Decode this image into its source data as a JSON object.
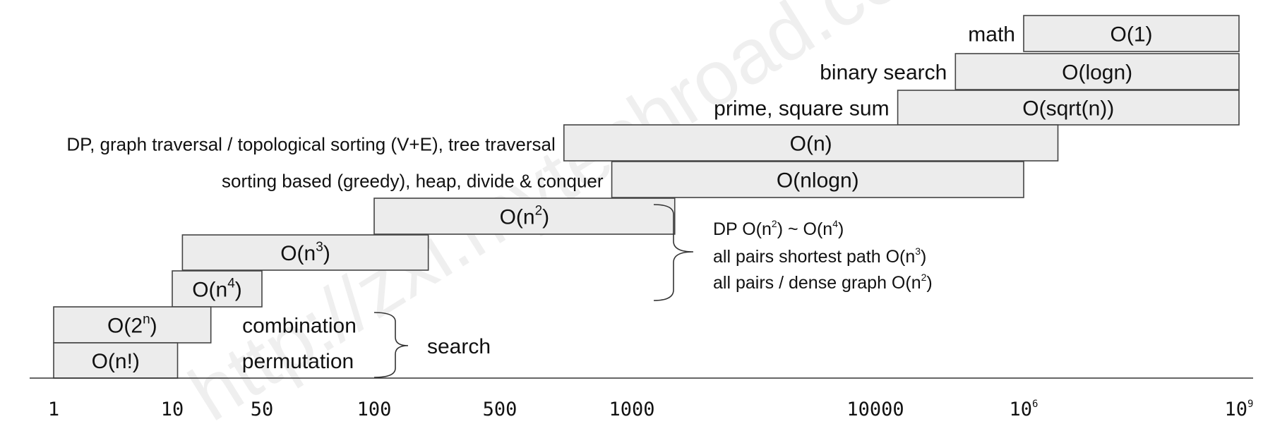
{
  "chart_data": {
    "type": "bar",
    "orientation": "horizontal-range",
    "x_axis": {
      "scale": "log",
      "tick_labels": [
        {
          "value": 1,
          "base": "1",
          "exp": ""
        },
        {
          "value": 10,
          "base": "10",
          "exp": ""
        },
        {
          "value": 50,
          "base": "50",
          "exp": ""
        },
        {
          "value": 100,
          "base": "100",
          "exp": ""
        },
        {
          "value": 500,
          "base": "500",
          "exp": ""
        },
        {
          "value": 1000,
          "base": "1000",
          "exp": ""
        },
        {
          "value": 10000,
          "base": "10000",
          "exp": ""
        },
        {
          "value": 1000000,
          "base": "10",
          "exp": "6"
        },
        {
          "value": 1000000000,
          "base": "10",
          "exp": "9"
        }
      ]
    },
    "series": [
      {
        "id": "o1",
        "label_base": "O(1)",
        "label_sup": "",
        "label_tail": "",
        "algorithm": "math",
        "range": [
          1000000,
          1000000000
        ]
      },
      {
        "id": "ologn",
        "label_base": "O(logn)",
        "label_sup": "",
        "label_tail": "",
        "algorithm": "binary search",
        "range": [
          120000,
          1000000000
        ]
      },
      {
        "id": "osqrt",
        "label_base": "O(sqrt(n))",
        "label_sup": "",
        "label_tail": "",
        "algorithm": "prime, square sum",
        "range": [
          20000,
          1000000000
        ]
      },
      {
        "id": "on",
        "label_base": "O(n)",
        "label_sup": "",
        "label_tail": "",
        "algorithm": "DP, graph traversal / topological sorting (V+E), tree traversal",
        "range": [
          700,
          3000000
        ]
      },
      {
        "id": "onlogn",
        "label_base": "O(nlogn)",
        "label_sup": "",
        "label_tail": "",
        "algorithm": "sorting based (greedy), heap, divide & conquer",
        "range": [
          900,
          1000000
        ]
      },
      {
        "id": "on2",
        "label_base": "O(n",
        "label_sup": "2",
        "label_tail": ")",
        "algorithm": "",
        "range": [
          100,
          1500
        ]
      },
      {
        "id": "on3",
        "label_base": "O(n",
        "label_sup": "3",
        "label_tail": ")",
        "algorithm": "",
        "range": [
          12,
          200
        ]
      },
      {
        "id": "on4",
        "label_base": "O(n",
        "label_sup": "4",
        "label_tail": ")",
        "algorithm": "",
        "range": [
          10,
          50
        ]
      },
      {
        "id": "o2n",
        "label_base": "O(2",
        "label_sup": "n",
        "label_tail": ")",
        "algorithm": "combination",
        "range": [
          1,
          20
        ]
      },
      {
        "id": "onfact",
        "label_base": "O(n!)",
        "label_sup": "",
        "label_tail": "",
        "algorithm": "permutation",
        "range": [
          1,
          11
        ]
      }
    ],
    "annotations": {
      "search_group": {
        "label": "search",
        "members": [
          "combination",
          "permutation"
        ]
      },
      "dp_note": [
        {
          "pre": "DP O(n",
          "sup1": "2",
          "mid": ") ~ O(n",
          "sup2": "4",
          "post": ")"
        },
        {
          "pre": "all pairs shortest path O(n",
          "sup1": "3",
          "mid": ")",
          "sup2": "",
          "post": ""
        },
        {
          "pre": "all pairs / dense graph O(n",
          "sup1": "2",
          "mid": ")",
          "sup2": "",
          "post": ""
        }
      ]
    },
    "watermark": "http://zxi.mytechroad.com/blog  花花酱 LeetCode",
    "colors": {
      "bar_fill": "#ececec",
      "bar_stroke": "#444444",
      "text": "#111111"
    }
  }
}
